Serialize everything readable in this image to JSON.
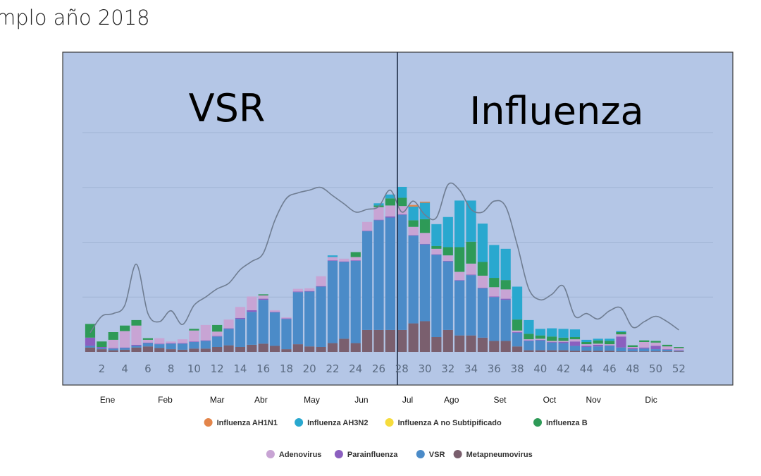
{
  "title": "mplo año 2018",
  "chart_data": {
    "type": "bar",
    "stacked": true,
    "x": [
      1,
      2,
      3,
      4,
      5,
      6,
      7,
      8,
      9,
      10,
      11,
      12,
      13,
      14,
      15,
      16,
      17,
      18,
      19,
      20,
      21,
      22,
      23,
      24,
      25,
      26,
      27,
      28,
      29,
      30,
      31,
      32,
      33,
      34,
      35,
      36,
      37,
      38,
      39,
      40,
      41,
      42,
      43,
      44,
      45,
      46,
      47,
      48,
      49,
      50,
      51,
      52
    ],
    "x_tick_labels": [
      "2",
      "4",
      "6",
      "8",
      "10",
      "12",
      "14",
      "16",
      "18",
      "20",
      "22",
      "24",
      "26",
      "28",
      "30",
      "32",
      "34",
      "36",
      "38",
      "40",
      "42",
      "44",
      "46",
      "48",
      "50",
      "52"
    ],
    "months": [
      {
        "label": "Ene",
        "week": 2.5
      },
      {
        "label": "Feb",
        "week": 7.5
      },
      {
        "label": "Mar",
        "week": 12
      },
      {
        "label": "Abr",
        "week": 15.8
      },
      {
        "label": "May",
        "week": 20.2
      },
      {
        "label": "Jun",
        "week": 24.5
      },
      {
        "label": "Jul",
        "week": 28.5
      },
      {
        "label": "Ago",
        "week": 32.3
      },
      {
        "label": "Set",
        "week": 36.5
      },
      {
        "label": "Oct",
        "week": 40.8
      },
      {
        "label": "Nov",
        "week": 44.6
      },
      {
        "label": "Dic",
        "week": 49.6
      }
    ],
    "ylim": [
      0,
      400
    ],
    "grid": true,
    "legend_position": "bottom",
    "regions": [
      {
        "label": "VSR",
        "week_from": 0.5,
        "week_to": 26.5
      },
      {
        "label": "Influenza",
        "week_from": 26.5,
        "week_to": 52.5
      }
    ],
    "series": [
      {
        "name": "Metapneumovirus",
        "color": "#7a5f6e",
        "values": [
          8,
          5,
          3,
          4,
          8,
          10,
          7,
          5,
          4,
          6,
          6,
          9,
          12,
          9,
          13,
          15,
          11,
          5,
          14,
          10,
          9,
          16,
          24,
          16,
          40,
          40,
          40,
          40,
          52,
          56,
          27,
          40,
          30,
          30,
          26,
          20,
          20,
          10,
          3,
          3,
          3,
          3,
          2,
          2,
          2,
          2,
          1,
          1,
          1,
          1,
          1,
          1
        ]
      },
      {
        "name": "VSR",
        "color": "#4b8bc8",
        "values": [
          3,
          2,
          3,
          3,
          3,
          6,
          7,
          10,
          11,
          12,
          14,
          19,
          30,
          51,
          60,
          80,
          61,
          55,
          95,
          100,
          110,
          150,
          140,
          150,
          180,
          200,
          205,
          210,
          160,
          140,
          150,
          125,
          100,
          110,
          90,
          80,
          75,
          25,
          17,
          18,
          14,
          13,
          9,
          7,
          8,
          9,
          7,
          4,
          5,
          4,
          3,
          1
        ]
      },
      {
        "name": "Parainfluenza",
        "color": "#8b5fbf",
        "values": [
          15,
          2,
          1,
          1,
          2,
          1,
          1,
          1,
          1,
          1,
          1,
          1,
          1,
          2,
          3,
          2,
          1,
          1,
          1,
          1,
          1,
          1,
          1,
          1,
          1,
          1,
          2,
          1,
          1,
          1,
          1,
          1,
          1,
          1,
          1,
          1,
          2,
          1,
          1,
          1,
          1,
          2,
          8,
          2,
          3,
          1,
          20,
          2,
          2,
          6,
          1,
          1
        ]
      },
      {
        "name": "Adenovirus",
        "color": "#c8a4d4",
        "values": [
          0,
          0,
          15,
          30,
          35,
          5,
          10,
          3,
          7,
          20,
          28,
          8,
          16,
          20,
          25,
          6,
          3,
          2,
          5,
          5,
          18,
          6,
          5,
          6,
          16,
          23,
          20,
          15,
          15,
          20,
          10,
          10,
          15,
          20,
          22,
          17,
          17,
          3,
          2,
          2,
          2,
          2,
          4,
          3,
          2,
          2,
          4,
          2,
          10,
          6,
          5,
          4
        ]
      },
      {
        "name": "Influenza B",
        "color": "#2e9a57",
        "values": [
          25,
          10,
          14,
          10,
          10,
          3,
          0,
          0,
          0,
          3,
          0,
          12,
          0,
          0,
          0,
          2,
          0,
          0,
          0,
          0,
          0,
          0,
          0,
          9,
          0,
          3,
          13,
          15,
          12,
          25,
          5,
          15,
          45,
          40,
          25,
          17,
          17,
          20,
          10,
          6,
          8,
          6,
          4,
          4,
          6,
          6,
          4,
          3,
          3,
          3,
          3,
          2
        ]
      },
      {
        "name": "Influenza A no Subtipificado",
        "color": "#f6dc3c",
        "values": [
          0,
          0,
          0,
          0,
          0,
          0,
          0,
          0,
          0,
          0,
          0,
          0,
          0,
          0,
          0,
          0,
          0,
          0,
          0,
          0,
          0,
          0,
          0,
          0,
          0,
          0,
          0,
          0,
          0,
          0,
          0,
          0,
          0,
          0,
          0,
          0,
          0,
          0,
          0,
          0,
          0,
          0,
          0,
          0,
          0,
          0,
          0,
          0,
          0,
          0,
          0,
          0
        ]
      },
      {
        "name": "Influenza AH3N2",
        "color": "#29a8cf",
        "values": [
          0,
          0,
          0,
          0,
          0,
          0,
          0,
          0,
          0,
          0,
          0,
          0,
          0,
          0,
          0,
          0,
          0,
          0,
          0,
          0,
          0,
          3,
          0,
          0,
          0,
          4,
          7,
          20,
          25,
          30,
          40,
          55,
          85,
          75,
          70,
          60,
          57,
          60,
          25,
          12,
          15,
          16,
          14,
          4,
          3,
          4,
          2,
          0,
          0,
          0,
          0,
          0
        ]
      },
      {
        "name": "Influenza AH1N1",
        "color": "#e3854a",
        "values": [
          0,
          0,
          0,
          0,
          0,
          0,
          0,
          0,
          0,
          0,
          0,
          0,
          0,
          0,
          0,
          0,
          0,
          0,
          0,
          0,
          0,
          0,
          0,
          0,
          0,
          0,
          0,
          0,
          3,
          2,
          0,
          0,
          0,
          0,
          0,
          0,
          0,
          0,
          0,
          0,
          0,
          0,
          0,
          0,
          0,
          0,
          0,
          0,
          0,
          0,
          0,
          0
        ]
      }
    ],
    "trend_line": {
      "color": "#6f7d92",
      "values": [
        35,
        65,
        70,
        85,
        160,
        70,
        55,
        75,
        50,
        85,
        100,
        115,
        125,
        150,
        165,
        180,
        240,
        280,
        290,
        295,
        300,
        285,
        270,
        255,
        260,
        265,
        295,
        255,
        275,
        250,
        245,
        305,
        295,
        260,
        255,
        275,
        265,
        195,
        115,
        95,
        105,
        120,
        65,
        70,
        60,
        75,
        80,
        45,
        55,
        65,
        55,
        40
      ]
    }
  },
  "legend": {
    "rows": [
      [
        "Influenza AH1N1",
        "Influenza AH3N2",
        "Influenza A no Subtipificado",
        "Influenza B"
      ],
      [
        "Adenovirus",
        "Parainfluenza",
        "VSR",
        "Metapneumovirus"
      ]
    ]
  }
}
